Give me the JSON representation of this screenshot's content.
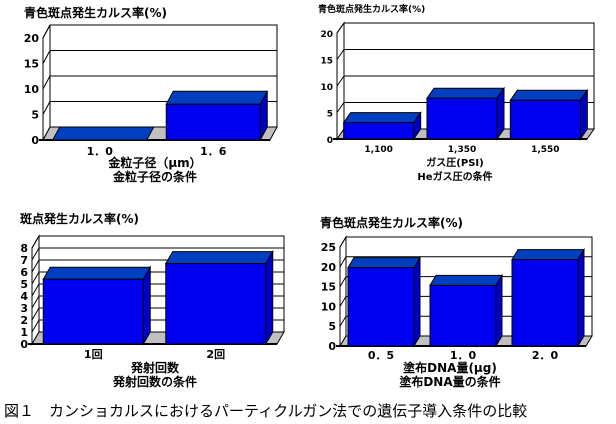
{
  "caption": "図１　カンショカルスにおけるパーティクルガン法での遺伝子導入条件の比較",
  "colors": {
    "bar_front": "#0000f0",
    "bar_top": "#0040c0",
    "bar_side": "#0000c8",
    "floor": "#c0c0c0"
  },
  "chart_data": [
    {
      "type": "bar",
      "title": "青色斑点発生カルス率(%)",
      "xlabel": "金粒子径（μm）",
      "subtitle": "金粒子径の条件",
      "categories": [
        "1．0",
        "1．6"
      ],
      "values": [
        0,
        7
      ],
      "ylim": [
        0,
        20
      ],
      "yticks": [
        0,
        5,
        10,
        15,
        20
      ],
      "grid": true
    },
    {
      "type": "bar",
      "title": "青色斑点発生カルス率(%)",
      "xlabel": "ガス圧(PSI)",
      "subtitle": "Heガス圧の条件",
      "categories": [
        "1,100",
        "1,350",
        "1,550"
      ],
      "values": [
        3.1,
        7.7,
        7.3
      ],
      "ylim": [
        0,
        20
      ],
      "yticks": [
        0,
        5,
        10,
        15,
        20
      ],
      "grid": true
    },
    {
      "type": "bar",
      "title": "斑点発生カルス率(%)",
      "xlabel": "発射回数",
      "subtitle": "発射回数の条件",
      "categories": [
        "1回",
        "2回"
      ],
      "values": [
        5.4,
        6.7
      ],
      "ylim": [
        0,
        8
      ],
      "yticks": [
        0,
        1,
        2,
        3,
        4,
        5,
        6,
        7,
        8
      ],
      "grid": true
    },
    {
      "type": "bar",
      "title": "青色斑点発生カルス率(%)",
      "xlabel": "塗布DNA量(μg)",
      "subtitle": "塗布DNA量の条件",
      "categories": [
        "0．5",
        "1．0",
        "2．0"
      ],
      "values": [
        19.8,
        15.3,
        21.8
      ],
      "ylim": [
        0,
        25
      ],
      "yticks": [
        0,
        5,
        10,
        15,
        20,
        25
      ],
      "grid": true
    }
  ]
}
